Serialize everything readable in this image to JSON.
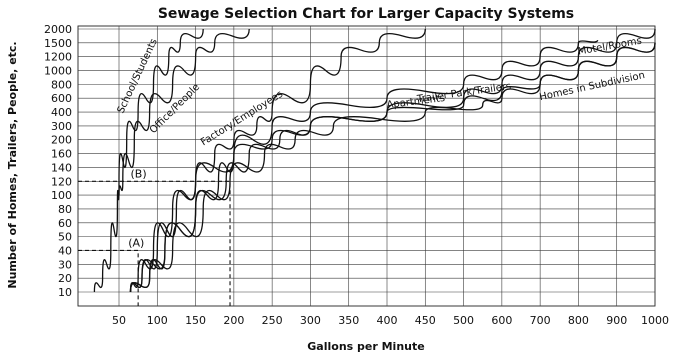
{
  "chart_data": {
    "type": "line",
    "title": "Sewage Selection Chart for Larger Capacity Systems",
    "xlabel": "Gallons per Minute",
    "ylabel": "Number of Homes, Trailers, People, etc.",
    "x_ticks": [
      "50",
      "100",
      "150",
      "200",
      "250",
      "300",
      "350",
      "400",
      "450",
      "500",
      "600",
      "700",
      "800",
      "900",
      "1000"
    ],
    "y_ticks": [
      "10",
      "20",
      "30",
      "40",
      "50",
      "60",
      "80",
      "100",
      "120",
      "140",
      "160",
      "200",
      "300",
      "400",
      "600",
      "800",
      "1000",
      "1200",
      "1500",
      "2000"
    ],
    "grid": true,
    "series": [
      {
        "name": "School/Students",
        "points": [
          [
            20,
            10
          ],
          [
            30,
            20
          ],
          [
            40,
            40
          ],
          [
            48,
            80
          ],
          [
            50,
            120
          ],
          [
            60,
            200
          ],
          [
            75,
            400
          ],
          [
            95,
            800
          ],
          [
            115,
            1200
          ],
          [
            130,
            1500
          ],
          [
            160,
            2000
          ]
        ]
      },
      {
        "name": "Office/People",
        "points": [
          [
            50,
            100
          ],
          [
            55,
            120
          ],
          [
            70,
            200
          ],
          [
            90,
            400
          ],
          [
            120,
            800
          ],
          [
            150,
            1200
          ],
          [
            175,
            1500
          ],
          [
            220,
            2000
          ]
        ]
      },
      {
        "name": "Factory/Employees",
        "points": [
          [
            65,
            10
          ],
          [
            75,
            20
          ],
          [
            95,
            40
          ],
          [
            120,
            80
          ],
          [
            150,
            120
          ],
          [
            175,
            160
          ],
          [
            200,
            200
          ],
          [
            230,
            300
          ],
          [
            250,
            400
          ],
          [
            300,
            800
          ],
          [
            340,
            1200
          ],
          [
            390,
            1500
          ],
          [
            450,
            2000
          ]
        ]
      },
      {
        "name": "Trailer Park/Trailers",
        "points": [
          [
            65,
            10
          ],
          [
            80,
            20
          ],
          [
            100,
            40
          ],
          [
            125,
            80
          ],
          [
            150,
            120
          ],
          [
            200,
            160
          ],
          [
            250,
            300
          ],
          [
            300,
            400
          ],
          [
            400,
            600
          ],
          [
            500,
            800
          ],
          [
            600,
            1000
          ],
          [
            700,
            1200
          ],
          [
            800,
            1500
          ],
          [
            850,
            1600
          ]
        ]
      },
      {
        "name": "Motel/Rooms",
        "points": [
          [
            65,
            10
          ],
          [
            90,
            20
          ],
          [
            110,
            40
          ],
          [
            150,
            80
          ],
          [
            180,
            120
          ],
          [
            200,
            160
          ],
          [
            250,
            200
          ],
          [
            300,
            300
          ],
          [
            400,
            400
          ],
          [
            500,
            600
          ],
          [
            600,
            800
          ],
          [
            700,
            1000
          ],
          [
            800,
            1200
          ],
          [
            900,
            1500
          ],
          [
            1000,
            2000
          ]
        ]
      },
      {
        "name": "Apartments",
        "points": [
          [
            65,
            10
          ],
          [
            80,
            20
          ],
          [
            110,
            40
          ],
          [
            150,
            80
          ],
          [
            190,
            120
          ],
          [
            220,
            160
          ],
          [
            260,
            200
          ],
          [
            300,
            300
          ],
          [
            400,
            400
          ],
          [
            500,
            500
          ],
          [
            600,
            700
          ],
          [
            700,
            800
          ],
          [
            800,
            1000
          ],
          [
            900,
            1200
          ],
          [
            1000,
            1500
          ]
        ]
      },
      {
        "name": "Homes in Subdivision",
        "points": [
          [
            65,
            10
          ],
          [
            90,
            20
          ],
          [
            120,
            40
          ],
          [
            160,
            80
          ],
          [
            195,
            120
          ],
          [
            240,
            160
          ],
          [
            280,
            200
          ],
          [
            330,
            300
          ],
          [
            450,
            400
          ],
          [
            550,
            500
          ],
          [
            600,
            600
          ],
          [
            700,
            800
          ],
          [
            800,
            1000
          ],
          [
            900,
            1200
          ],
          [
            1000,
            1500
          ]
        ]
      }
    ],
    "annotations": [
      {
        "label": "(A)",
        "x": 75,
        "y": 40
      },
      {
        "label": "(B)",
        "x": 195,
        "y": 120
      }
    ]
  }
}
